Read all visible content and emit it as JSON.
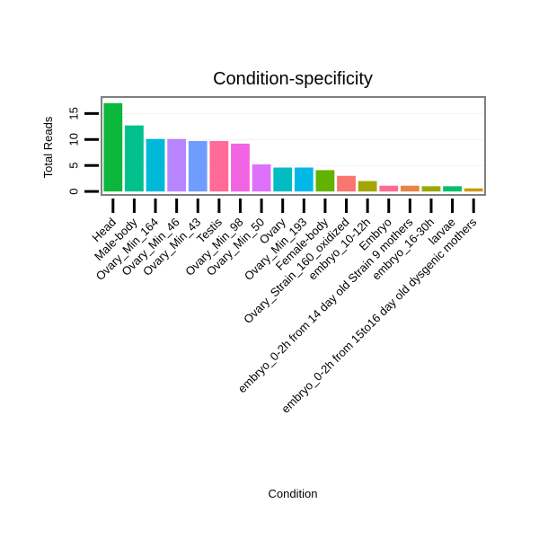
{
  "chart_data": {
    "type": "bar",
    "title": "Condition-specificity",
    "xlabel": "Condition",
    "ylabel": "Total Reads",
    "ylim": [
      -0.5,
      18
    ],
    "yticks": [
      0,
      5,
      10,
      15
    ],
    "grid": true,
    "legend": "none",
    "categories": [
      "Head",
      "Male-body",
      "Ovary_Min_164",
      "Ovary_Min_46",
      "Ovary_Min_43",
      "Testis",
      "Ovary_Min_98",
      "Ovary_Min_50",
      "Ovary",
      "Ovary_Min_193",
      "Female-body",
      "Ovary_Strain_160_oxidized",
      "embryo_10-12h",
      "Embryo",
      "embryo_0-2h from 14 day old Strain 9 mothers",
      "embryo_16-30h",
      "larvae",
      "embryo_0-2h from 15to16 day old dysgenic mothers"
    ],
    "values": [
      17,
      12.7,
      10.1,
      10.1,
      9.7,
      9.7,
      9.2,
      5.2,
      4.6,
      4.6,
      4.1,
      3.0,
      2.0,
      1.1,
      1.1,
      1.0,
      1.0,
      0.6
    ],
    "colors": [
      "#0cb83c",
      "#00c08b",
      "#00b8d8",
      "#b785ff",
      "#6f9cff",
      "#ff6a98",
      "#f264e2",
      "#dd71fa",
      "#00bdc3",
      "#00b8e5",
      "#62b200",
      "#f8766d",
      "#a3a500",
      "#ff6c91",
      "#e98544",
      "#9aa800",
      "#00c06a",
      "#cc9a00"
    ]
  }
}
